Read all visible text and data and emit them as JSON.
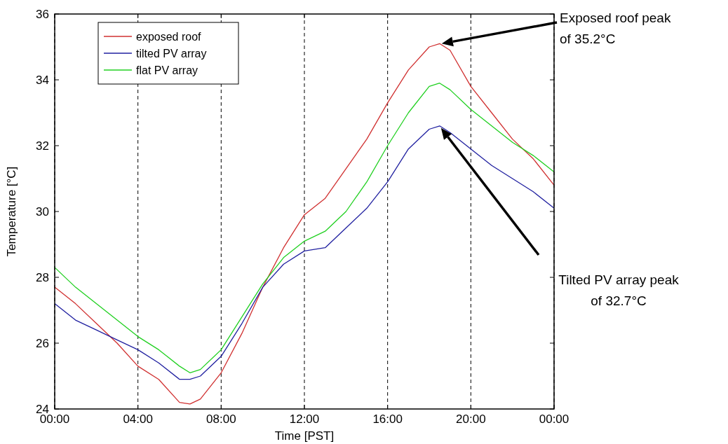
{
  "chart_data": {
    "type": "line",
    "xlabel": "Time [PST]",
    "ylabel": "Temperature [°C]",
    "x": [
      0,
      1,
      2,
      3,
      4,
      5,
      6,
      6.5,
      7,
      8,
      9,
      10,
      11,
      12,
      13,
      14,
      15,
      16,
      17,
      18,
      18.5,
      19,
      20,
      21,
      22,
      23,
      24
    ],
    "xlim": [
      0,
      24
    ],
    "xticks": [
      {
        "value": 0,
        "label": "00:00"
      },
      {
        "value": 4,
        "label": "04:00"
      },
      {
        "value": 8,
        "label": "08:00"
      },
      {
        "value": 12,
        "label": "12:00"
      },
      {
        "value": 16,
        "label": "16:00"
      },
      {
        "value": 20,
        "label": "20:00"
      },
      {
        "value": 24,
        "label": "00:00"
      }
    ],
    "ylim": [
      24,
      36
    ],
    "yticks": [
      24,
      26,
      28,
      30,
      32,
      34,
      36
    ],
    "grid": "x",
    "legend": "top left",
    "line_style": "solid",
    "marker": "none",
    "series": [
      {
        "name": "exposed roof",
        "color": "#d03030",
        "values": [
          27.7,
          27.2,
          26.6,
          26.0,
          25.3,
          24.9,
          24.2,
          24.15,
          24.3,
          25.1,
          26.3,
          27.7,
          28.9,
          29.9,
          30.4,
          31.3,
          32.2,
          33.3,
          34.3,
          35.0,
          35.1,
          34.9,
          33.8,
          33.0,
          32.2,
          31.6,
          30.8
        ]
      },
      {
        "name": "tilted PV array",
        "color": "#2020a0",
        "values": [
          27.2,
          26.7,
          26.4,
          26.1,
          25.8,
          25.4,
          24.9,
          24.9,
          25.0,
          25.6,
          26.6,
          27.7,
          28.4,
          28.8,
          28.9,
          29.5,
          30.1,
          30.9,
          31.9,
          32.5,
          32.6,
          32.4,
          31.9,
          31.4,
          31.0,
          30.6,
          30.1
        ]
      },
      {
        "name": "flat PV array",
        "color": "#20d020",
        "values": [
          28.3,
          27.7,
          27.2,
          26.7,
          26.2,
          25.8,
          25.3,
          25.1,
          25.2,
          25.8,
          26.8,
          27.8,
          28.6,
          29.1,
          29.4,
          30.0,
          30.9,
          32.0,
          33.0,
          33.8,
          33.9,
          33.7,
          33.1,
          32.6,
          32.1,
          31.7,
          31.2
        ]
      }
    ],
    "annotations": [
      "Exposed roof peak\nof 35.2°C",
      "Tilted PV array peak\nof 32.7°C"
    ]
  }
}
